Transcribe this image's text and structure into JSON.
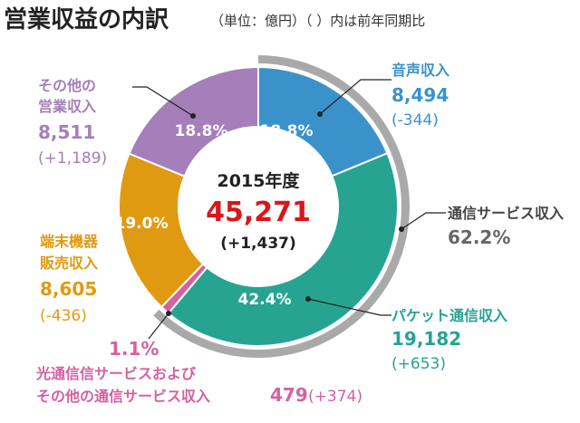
{
  "title": "営業収益の内訳",
  "title_note": "（単位：億円）（ ）内は前年同期比",
  "center": {
    "year": "2015年度",
    "total": "45,271",
    "change": "(+1,437)"
  },
  "chart_data": {
    "type": "pie",
    "title": "営業収益の内訳",
    "unit": "億円",
    "total": 45271,
    "slices": [
      {
        "label_lines": [
          "音声収入"
        ],
        "value": 8494,
        "value_text": "8,494",
        "change": "(-344)",
        "percent": 18.8,
        "percent_text": "18.8%",
        "color": "#3b92cb"
      },
      {
        "label_lines": [
          "パケット通信収入"
        ],
        "value": 19182,
        "value_text": "19,182",
        "change": "(+653)",
        "percent": 42.4,
        "percent_text": "42.4%",
        "color": "#27a391"
      },
      {
        "label_lines": [
          "光通信信サービスおよび",
          "その他の通信サービス収入"
        ],
        "value": 479,
        "value_text": "479",
        "change": "(+374)",
        "percent": 1.1,
        "percent_text": "1.1%",
        "color": "#d461a0"
      },
      {
        "label_lines": [
          "端末機器",
          "販売収入"
        ],
        "value": 8605,
        "value_text": "8,605",
        "change": "(-436)",
        "percent": 19.0,
        "percent_text": "19.0%",
        "color": "#e09a12"
      },
      {
        "label_lines": [
          "その他の",
          "営業収入"
        ],
        "value": 8511,
        "value_text": "8,511",
        "change": "(+1,189)",
        "percent": 18.8,
        "percent_text": "18.8%",
        "color": "#a47fba"
      }
    ],
    "group": {
      "label": "通信サービス収入",
      "percent": 62.2,
      "percent_text": "62.2%",
      "color": "#a9a9a9"
    }
  }
}
